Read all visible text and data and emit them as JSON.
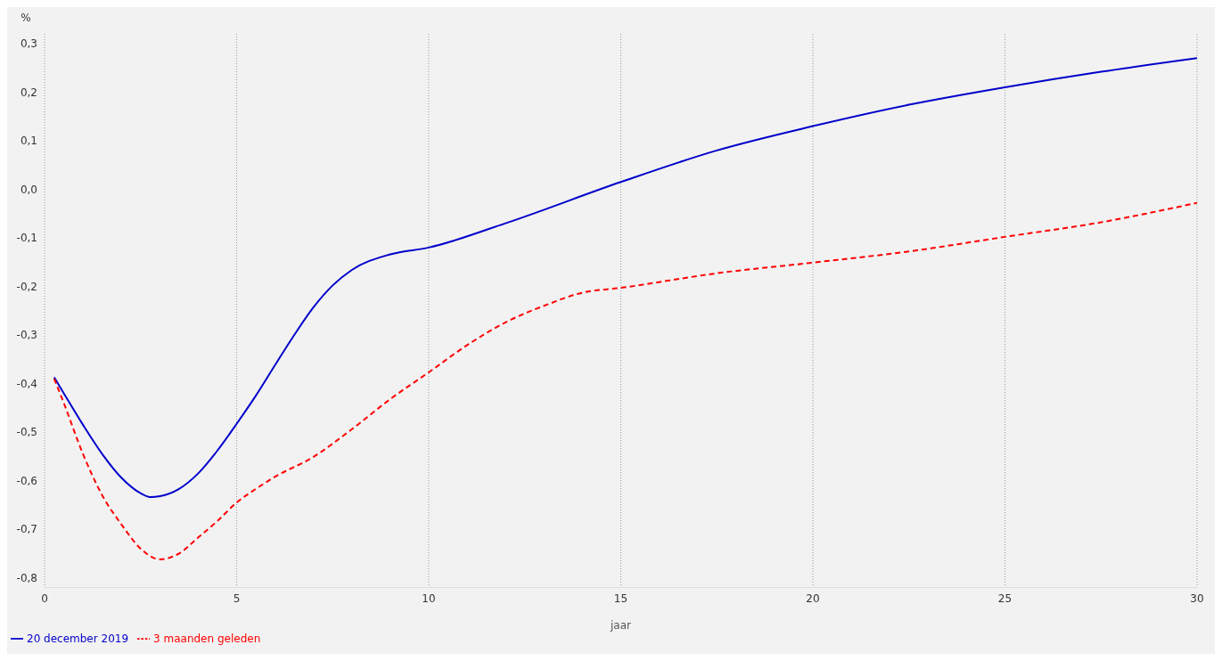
{
  "chart_data": {
    "type": "line",
    "ylabel": "%",
    "xlabel": "jaar",
    "xlim": [
      0,
      30
    ],
    "xticks": [
      0,
      5,
      10,
      15,
      20,
      25,
      30
    ],
    "ylim": [
      -0.82,
      0.32
    ],
    "yticks": [
      {
        "value": -0.8,
        "label": "-0,8"
      },
      {
        "value": -0.7,
        "label": "-0,7"
      },
      {
        "value": -0.6,
        "label": "-0,6"
      },
      {
        "value": -0.5,
        "label": "-0,5"
      },
      {
        "value": -0.4,
        "label": "-0,4"
      },
      {
        "value": -0.3,
        "label": "-0,3"
      },
      {
        "value": -0.2,
        "label": "-0,2"
      },
      {
        "value": -0.1,
        "label": "-0,1"
      },
      {
        "value": 0,
        "label": "0,0"
      },
      {
        "value": 0.1,
        "label": "0,1"
      },
      {
        "value": 0.2,
        "label": "0,2"
      },
      {
        "value": 0.3,
        "label": "0,3"
      }
    ],
    "grid": "x",
    "legend": "bottom left",
    "marker": "none",
    "series": [
      {
        "name": "20 december 2019",
        "color": "#0000cc",
        "line_style": "solid",
        "x": [
          0.25,
          0.5,
          1,
          1.5,
          2,
          2.5,
          2.75,
          3,
          3.5,
          4,
          4.5,
          5,
          5.5,
          6,
          6.5,
          7,
          7.5,
          8,
          9,
          10,
          12,
          15,
          17.5,
          20,
          22.5,
          25,
          27.5,
          30
        ],
        "values": [
          -0.387,
          -0.42,
          -0.485,
          -0.545,
          -0.594,
          -0.626,
          -0.634,
          -0.632,
          -0.617,
          -0.585,
          -0.538,
          -0.483,
          -0.425,
          -0.362,
          -0.3,
          -0.243,
          -0.198,
          -0.166,
          -0.134,
          -0.12,
          -0.07,
          0.015,
          0.08,
          0.13,
          0.174,
          0.21,
          0.242,
          0.27
        ]
      },
      {
        "name": "3 maanden geleden",
        "color": "#ff0000",
        "line_style": "dashed",
        "x": [
          0.25,
          0.5,
          1,
          1.5,
          2,
          2.5,
          3,
          3.5,
          4,
          4.5,
          5,
          5.5,
          6,
          7,
          8,
          9,
          10,
          11,
          12,
          13,
          14,
          15,
          17.5,
          20,
          22.5,
          25,
          27.5,
          30
        ],
        "values": [
          -0.39,
          -0.44,
          -0.545,
          -0.63,
          -0.69,
          -0.74,
          -0.762,
          -0.75,
          -0.717,
          -0.683,
          -0.645,
          -0.617,
          -0.592,
          -0.551,
          -0.494,
          -0.432,
          -0.377,
          -0.321,
          -0.274,
          -0.24,
          -0.213,
          -0.203,
          -0.173,
          -0.151,
          -0.128,
          -0.098,
          -0.068,
          -0.028
        ]
      }
    ]
  }
}
